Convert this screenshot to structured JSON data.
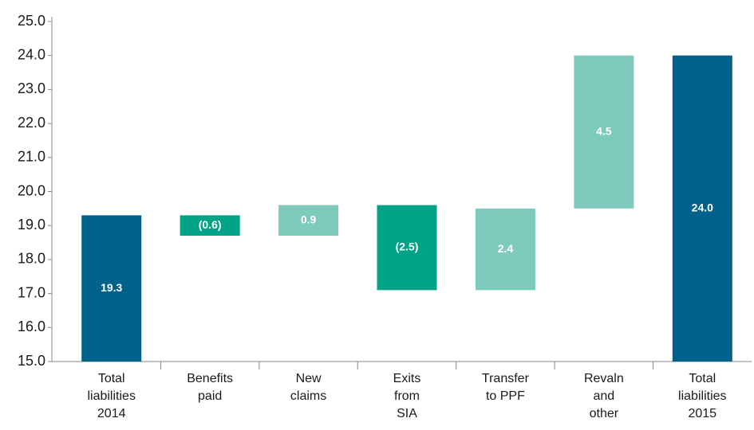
{
  "chart_data": {
    "type": "waterfall",
    "categories": [
      [
        "Total",
        "liabilities",
        "2014"
      ],
      [
        "Benefits",
        "paid"
      ],
      [
        "New",
        "claims"
      ],
      [
        "Exits",
        "from",
        "SIA"
      ],
      [
        "Transfer",
        "to PPF"
      ],
      [
        "Revaln",
        "and",
        "other"
      ],
      [
        "Total",
        "liabilities",
        "2015"
      ]
    ],
    "values": [
      19.3,
      -0.6,
      0.9,
      -2.5,
      2.4,
      4.5,
      24.0
    ],
    "value_labels": [
      "19.3",
      "(0.6)",
      "0.9",
      "(2.5)",
      "2.4",
      "4.5",
      "24.0"
    ],
    "colors": {
      "total": "#00628b",
      "increase": "#7ecbbd",
      "decrease": "#00a386"
    },
    "ylim": [
      15,
      25
    ],
    "yticks": [
      {
        "value": 15,
        "label": "15.0"
      },
      {
        "value": 16,
        "label": "16.0"
      },
      {
        "value": 17,
        "label": "17.0"
      },
      {
        "value": 18,
        "label": "18.0"
      },
      {
        "value": 19,
        "label": "19.0"
      },
      {
        "value": 20,
        "label": "20.0"
      },
      {
        "value": 21,
        "label": "21.0"
      },
      {
        "value": 22,
        "label": "22.0"
      },
      {
        "value": 23,
        "label": "23.0"
      },
      {
        "value": 24,
        "label": "24.0"
      },
      {
        "value": 25,
        "label": "25.0"
      }
    ]
  }
}
